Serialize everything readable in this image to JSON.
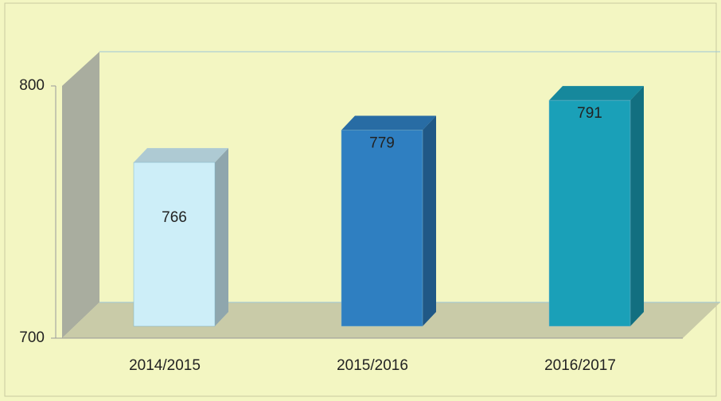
{
  "chart_data": {
    "type": "bar3d",
    "categories": [
      "2014/2015",
      "2015/2016",
      "2016/2017"
    ],
    "values": [
      766,
      779,
      791
    ],
    "colors": [
      "#cdeef8",
      "#2f7fc1",
      "#1aa0b8"
    ],
    "ylim": [
      700,
      800
    ],
    "yticks": [
      700,
      800
    ],
    "grid": true
  }
}
